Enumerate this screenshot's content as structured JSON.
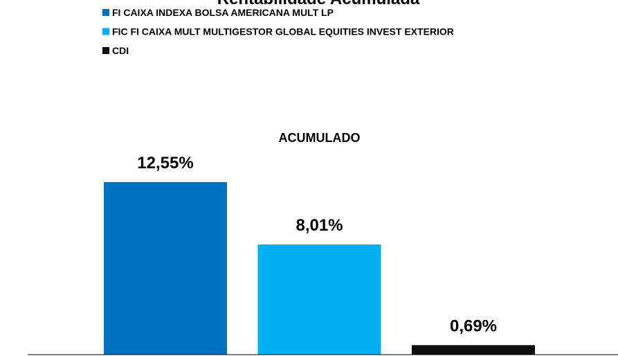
{
  "chart_data": {
    "type": "bar",
    "title": "Rentabilidade Acumulada",
    "categories": [
      "ACUMULADO"
    ],
    "series": [
      {
        "name": "FI CAIXA INDEXA BOLSA AMERICANA MULT LP",
        "color": "#0070c0",
        "values": [
          12.55
        ],
        "value_labels": [
          "12,55%"
        ]
      },
      {
        "name": "FIC FI CAIXA MULT MULTIGESTOR GLOBAL EQUITIES INVEST EXTERIOR",
        "color": "#00b0f0",
        "values": [
          8.01
        ],
        "value_labels": [
          "8,01%"
        ]
      },
      {
        "name": "CDI",
        "color": "#0d0d0d",
        "values": [
          0.69
        ],
        "value_labels": [
          "0,69%"
        ]
      }
    ]
  }
}
